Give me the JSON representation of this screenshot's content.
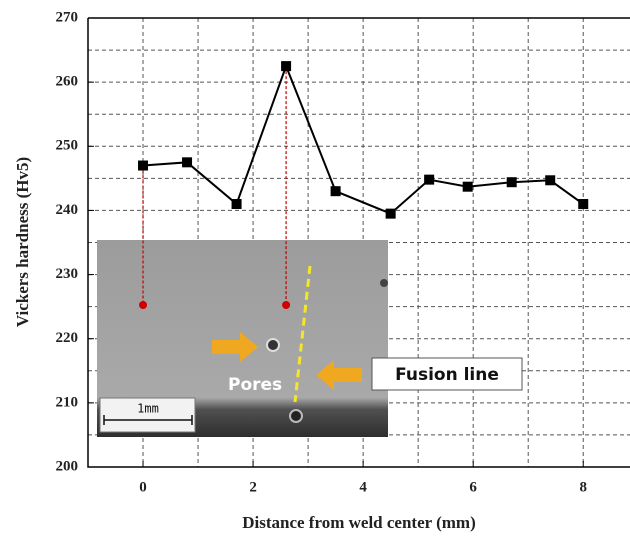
{
  "chart_data": {
    "type": "line",
    "x_label": "Distance from weld center (mm)",
    "y_label": "Vickers hardness (Hv5)",
    "x": [
      0,
      0.8,
      1.7,
      2.6,
      3.5,
      4.5,
      5.2,
      5.9,
      6.7,
      7.4,
      8.0
    ],
    "values": [
      247,
      247.5,
      241,
      262.5,
      243,
      239.5,
      244.8,
      243.7,
      244.4,
      244.7,
      241
    ],
    "color": "#000000",
    "xlim": [
      -1,
      8.85
    ],
    "ylim": [
      200,
      270
    ],
    "xticks": [
      0,
      2,
      4,
      6,
      8
    ],
    "yticks": [
      200,
      210,
      220,
      230,
      240,
      250,
      260,
      270
    ],
    "xminorticks": [
      -1,
      1,
      3,
      5,
      7
    ],
    "yminorticks": [
      205,
      215,
      225,
      235,
      245,
      255,
      265
    ],
    "grid": true,
    "annotations": {
      "pores": "Pores",
      "fusion_line": "Fusion line",
      "scale_bar": "1mm"
    }
  }
}
